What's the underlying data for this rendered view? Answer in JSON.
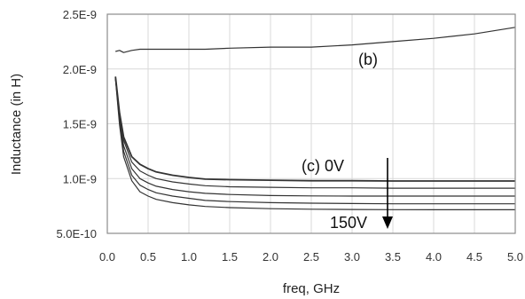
{
  "chart_data": {
    "type": "line",
    "title": "",
    "xlabel": "freq, GHz",
    "ylabel": "Inductance (in H)",
    "xlim": [
      0,
      5
    ],
    "ylim": [
      5e-10,
      2.5e-09
    ],
    "x_ticks": [
      0.0,
      0.5,
      1.0,
      1.5,
      2.0,
      2.5,
      3.0,
      3.5,
      4.0,
      4.5,
      5.0
    ],
    "x_tick_labels": [
      "0.0",
      "0.5",
      "1.0",
      "1.5",
      "2.0",
      "2.5",
      "3.0",
      "3.5",
      "4.0",
      "4.5",
      "5.0"
    ],
    "y_ticks": [
      5e-10,
      1e-09,
      1.5e-09,
      2e-09,
      2.5e-09
    ],
    "y_tick_labels": [
      "5.0E-10",
      "1.0E-9",
      "1.5E-9",
      "2.0E-9",
      "2.5E-9"
    ],
    "grid": true,
    "series": [
      {
        "x": [
          0.1,
          0.15,
          0.2,
          0.3,
          0.4,
          0.5,
          0.6,
          0.8,
          1.0,
          1.2,
          1.5,
          2.0,
          2.5,
          3.0,
          3.5,
          4.0,
          4.5,
          5.0
        ],
        "values": [
          2.16e-09,
          2.17e-09,
          2.15e-09,
          2.17e-09,
          2.18e-09,
          2.18e-09,
          2.18e-09,
          2.18e-09,
          2.18e-09,
          2.18e-09,
          2.19e-09,
          2.2e-09,
          2.2e-09,
          2.22e-09,
          2.25e-09,
          2.28e-09,
          2.32e-09,
          2.38e-09
        ]
      },
      {
        "x": [
          0.1,
          0.15,
          0.2,
          0.3,
          0.4,
          0.5,
          0.6,
          0.8,
          1.0,
          1.2,
          1.5,
          2.0,
          2.5,
          3.0,
          3.5,
          4.0,
          4.5,
          5.0
        ],
        "values": [
          1.93e-09,
          1.6e-09,
          1.38e-09,
          1.2e-09,
          1.13e-09,
          1.09e-09,
          1.06e-09,
          1.03e-09,
          1.01e-09,
          9.95e-10,
          9.9e-10,
          9.85e-10,
          9.8e-10,
          9.8e-10,
          9.78e-10,
          9.78e-10,
          9.78e-10,
          9.78e-10
        ]
      },
      {
        "x": [
          0.1,
          0.15,
          0.2,
          0.3,
          0.4,
          0.5,
          0.6,
          0.8,
          1.0,
          1.2,
          1.5,
          2.0,
          2.5,
          3.0,
          3.5,
          4.0,
          4.5,
          5.0
        ],
        "values": [
          1.93e-09,
          1.58e-09,
          1.35e-09,
          1.15e-09,
          1.07e-09,
          1.03e-09,
          1e-09,
          9.7e-10,
          9.5e-10,
          9.35e-10,
          9.25e-10,
          9.2e-10,
          9.15e-10,
          9.15e-10,
          9.12e-10,
          9.12e-10,
          9.12e-10,
          9.12e-10
        ]
      },
      {
        "x": [
          0.1,
          0.15,
          0.2,
          0.3,
          0.4,
          0.5,
          0.6,
          0.8,
          1.0,
          1.2,
          1.5,
          2.0,
          2.5,
          3.0,
          3.5,
          4.0,
          4.5,
          5.0
        ],
        "values": [
          1.92e-09,
          1.55e-09,
          1.3e-09,
          1.09e-09,
          1e-09,
          9.6e-10,
          9.3e-10,
          9e-10,
          8.8e-10,
          8.65e-10,
          8.55e-10,
          8.45e-10,
          8.42e-10,
          8.4e-10,
          8.4e-10,
          8.4e-10,
          8.4e-10,
          8.4e-10
        ]
      },
      {
        "x": [
          0.1,
          0.15,
          0.2,
          0.3,
          0.4,
          0.5,
          0.6,
          0.8,
          1.0,
          1.2,
          1.5,
          2.0,
          2.5,
          3.0,
          3.5,
          4.0,
          4.5,
          5.0
        ],
        "values": [
          1.92e-09,
          1.52e-09,
          1.25e-09,
          1.03e-09,
          9.4e-10,
          9e-10,
          8.7e-10,
          8.4e-10,
          8.2e-10,
          8e-10,
          7.9e-10,
          7.8e-10,
          7.75e-10,
          7.72e-10,
          7.7e-10,
          7.7e-10,
          7.7e-10,
          7.7e-10
        ]
      },
      {
        "x": [
          0.1,
          0.15,
          0.2,
          0.3,
          0.4,
          0.5,
          0.6,
          0.8,
          1.0,
          1.2,
          1.5,
          2.0,
          2.5,
          3.0,
          3.5,
          4.0,
          4.5,
          5.0
        ],
        "values": [
          1.91e-09,
          1.49e-09,
          1.2e-09,
          9.8e-10,
          8.8e-10,
          8.4e-10,
          8.1e-10,
          7.8e-10,
          7.6e-10,
          7.45e-10,
          7.35e-10,
          7.25e-10,
          7.2e-10,
          7.18e-10,
          7.16e-10,
          7.15e-10,
          7.15e-10,
          7.15e-10
        ]
      }
    ],
    "annotations": {
      "b_label": "(b)",
      "c_label": "(c)  0V",
      "v_label": "150V"
    },
    "colors": {
      "series": "#333333",
      "frame": "#8c8c8c",
      "grid": "#d9d9d9"
    }
  }
}
